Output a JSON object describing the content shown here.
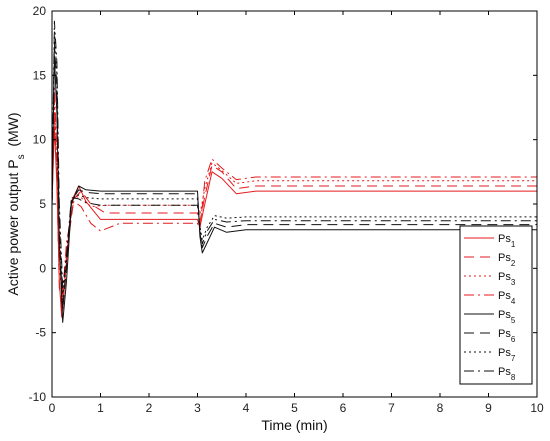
{
  "chart_data": {
    "type": "line",
    "title": "",
    "xlabel": "Time (min)",
    "ylabel": {
      "main": "Active power output P",
      "sub": "s",
      "unit": "  (MW)"
    },
    "xlim": [
      0,
      10
    ],
    "ylim": [
      -10,
      20
    ],
    "xticks": [
      "0",
      "1",
      "2",
      "3",
      "4",
      "5",
      "6",
      "7",
      "8",
      "9",
      "10"
    ],
    "yticks": [
      "-10",
      "-5",
      "0",
      "5",
      "10",
      "15",
      "20"
    ],
    "grid": false,
    "legend_position": "right-bottom",
    "series": [
      {
        "name": "Ps",
        "sub": "1",
        "color": "#e41a1c",
        "dash": "solid",
        "x": [
          0,
          0.05,
          0.1,
          0.15,
          0.2,
          0.3,
          0.4,
          0.55,
          0.7,
          1.0,
          1.3,
          3.0,
          3.05,
          3.15,
          3.3,
          3.5,
          3.8,
          4.2,
          5,
          10
        ],
        "y": [
          5,
          11,
          6.5,
          -1,
          -3.8,
          0.5,
          5.2,
          6.4,
          5.2,
          3.8,
          3.8,
          3.8,
          3.2,
          5,
          7.5,
          7,
          5.8,
          6,
          6,
          6
        ]
      },
      {
        "name": "Ps",
        "sub": "2",
        "color": "#e41a1c",
        "dash": "10,6",
        "x": [
          0,
          0.05,
          0.1,
          0.15,
          0.22,
          0.3,
          0.45,
          0.6,
          0.8,
          1.1,
          1.4,
          3.0,
          3.05,
          3.15,
          3.3,
          3.5,
          3.8,
          4.2,
          5,
          10
        ],
        "y": [
          5,
          12,
          7,
          -1.5,
          -3.3,
          1,
          5.4,
          6,
          5,
          4.3,
          4.3,
          4.3,
          3.6,
          5.6,
          8,
          7.5,
          6.2,
          6.4,
          6.4,
          6.4
        ]
      },
      {
        "name": "Ps",
        "sub": "3",
        "color": "#e41a1c",
        "dash": "2,3",
        "x": [
          0,
          0.05,
          0.1,
          0.15,
          0.22,
          0.3,
          0.45,
          0.6,
          0.8,
          1.1,
          1.4,
          3.0,
          3.05,
          3.15,
          3.3,
          3.5,
          3.8,
          4.2,
          5,
          10
        ],
        "y": [
          5,
          13,
          8,
          0,
          -2.5,
          1.5,
          5.6,
          5.5,
          4.8,
          4.9,
          4.9,
          4.9,
          4.2,
          6.2,
          8.2,
          7.6,
          6.6,
          6.8,
          6.8,
          6.8
        ]
      },
      {
        "name": "Ps",
        "sub": "4",
        "color": "#e41a1c",
        "dash": "10,4,2,4",
        "x": [
          0,
          0.05,
          0.1,
          0.15,
          0.22,
          0.3,
          0.45,
          0.6,
          0.8,
          1.0,
          1.4,
          3.0,
          3.05,
          3.15,
          3.3,
          3.5,
          3.8,
          4.2,
          5,
          10
        ],
        "y": [
          5,
          14,
          9,
          1,
          -2,
          2,
          5.2,
          4.8,
          3.5,
          2.9,
          3.5,
          3.5,
          3,
          6.8,
          8.5,
          7.8,
          6.9,
          7.1,
          7.1,
          7.1
        ]
      },
      {
        "name": "Ps",
        "sub": "5",
        "color": "#111111",
        "dash": "solid",
        "x": [
          0,
          0.05,
          0.1,
          0.15,
          0.22,
          0.3,
          0.4,
          0.55,
          0.7,
          1.0,
          1.4,
          3.0,
          3.05,
          3.1,
          3.2,
          3.35,
          3.6,
          4.0,
          5,
          10
        ],
        "y": [
          5,
          16.5,
          12,
          2,
          -4.2,
          -1,
          5,
          6.4,
          6.1,
          6,
          6,
          6,
          2.5,
          1.2,
          2,
          3.2,
          2.8,
          3,
          3,
          3
        ]
      },
      {
        "name": "Ps",
        "sub": "6",
        "color": "#111111",
        "dash": "10,6",
        "x": [
          0,
          0.05,
          0.1,
          0.15,
          0.22,
          0.3,
          0.4,
          0.55,
          0.7,
          1.0,
          1.4,
          3.0,
          3.05,
          3.1,
          3.2,
          3.35,
          3.6,
          4.0,
          5,
          10
        ],
        "y": [
          5,
          17.5,
          14,
          3,
          -3.2,
          0,
          5.2,
          6.1,
          5.9,
          5.8,
          5.8,
          5.8,
          2.8,
          1.6,
          2.5,
          3.5,
          3.2,
          3.4,
          3.4,
          3.4
        ]
      },
      {
        "name": "Ps",
        "sub": "7",
        "color": "#111111",
        "dash": "2,3",
        "x": [
          0,
          0.05,
          0.1,
          0.15,
          0.22,
          0.3,
          0.4,
          0.55,
          0.7,
          1.0,
          1.4,
          3.0,
          3.05,
          3.1,
          3.2,
          3.35,
          3.6,
          4.0,
          5,
          10
        ],
        "y": [
          5,
          18.5,
          15,
          4,
          -2.2,
          0.5,
          5.4,
          5.7,
          5.5,
          5.4,
          5.4,
          5.4,
          3.3,
          2.2,
          3.2,
          4.1,
          3.9,
          4,
          4,
          4
        ]
      },
      {
        "name": "Ps",
        "sub": "8",
        "color": "#111111",
        "dash": "10,4,2,4",
        "x": [
          0,
          0.05,
          0.1,
          0.15,
          0.22,
          0.3,
          0.4,
          0.55,
          0.7,
          1.0,
          1.4,
          3.0,
          3.05,
          3.1,
          3.2,
          3.35,
          3.6,
          4.0,
          5,
          10
        ],
        "y": [
          5,
          19.2,
          16,
          5,
          -1.5,
          1,
          5.5,
          5.4,
          5.1,
          4.9,
          4.9,
          4.9,
          3,
          1.9,
          2.9,
          3.8,
          3.6,
          3.7,
          3.7,
          3.7
        ]
      }
    ]
  }
}
